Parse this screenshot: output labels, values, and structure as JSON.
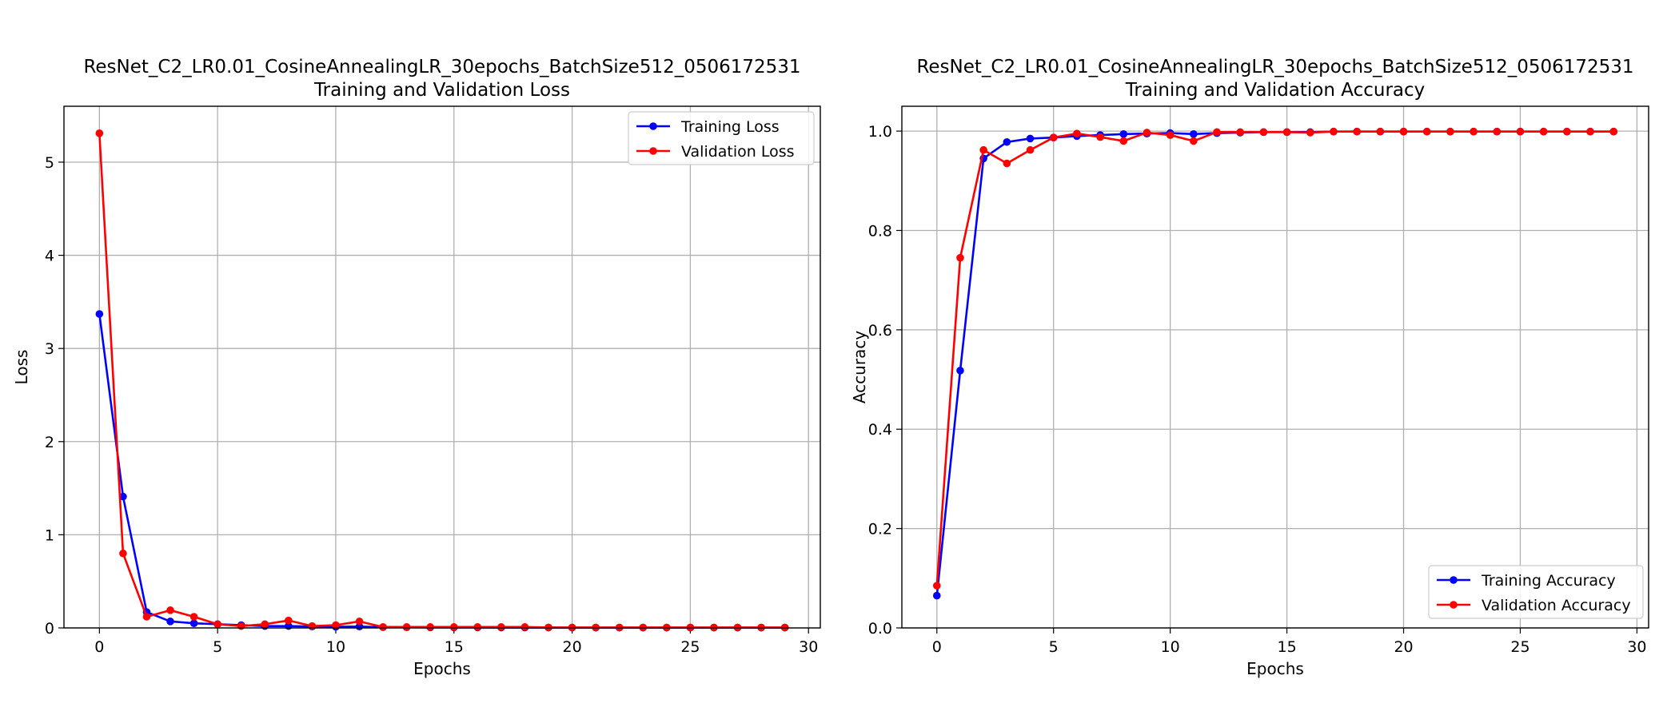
{
  "chart_data": [
    {
      "type": "line",
      "title_line1": "ResNet_C2_LR0.01_CosineAnnealingLR_30epochs_BatchSize512_0506172531",
      "title_line2": "Training and Validation Loss",
      "xlabel": "Epochs",
      "ylabel": "Loss",
      "xlim": [
        -1.5,
        30.5
      ],
      "ylim": [
        0,
        5.6
      ],
      "xticks": [
        0,
        5,
        10,
        15,
        20,
        25,
        30
      ],
      "yticks": [
        0,
        1,
        2,
        3,
        4,
        5
      ],
      "grid": true,
      "legend_position": "top-right",
      "x": [
        0,
        1,
        2,
        3,
        4,
        5,
        6,
        7,
        8,
        9,
        10,
        11,
        12,
        13,
        14,
        15,
        16,
        17,
        18,
        19,
        20,
        21,
        22,
        23,
        24,
        25,
        26,
        27,
        28,
        29
      ],
      "series": [
        {
          "name": "Training Loss",
          "color": "#0000ff",
          "values": [
            3.37,
            1.41,
            0.17,
            0.07,
            0.05,
            0.04,
            0.03,
            0.02,
            0.02,
            0.015,
            0.012,
            0.015,
            0.008,
            0.007,
            0.006,
            0.005,
            0.005,
            0.004,
            0.004,
            0.004,
            0.003,
            0.003,
            0.003,
            0.003,
            0.003,
            0.003,
            0.003,
            0.003,
            0.003,
            0.003
          ]
        },
        {
          "name": "Validation Loss",
          "color": "#ff0000",
          "values": [
            5.31,
            0.8,
            0.12,
            0.19,
            0.12,
            0.04,
            0.02,
            0.04,
            0.08,
            0.02,
            0.03,
            0.07,
            0.01,
            0.01,
            0.01,
            0.01,
            0.01,
            0.01,
            0.01,
            0.005,
            0.005,
            0.005,
            0.005,
            0.005,
            0.005,
            0.005,
            0.005,
            0.005,
            0.005,
            0.005
          ]
        }
      ]
    },
    {
      "type": "line",
      "title_line1": "ResNet_C2_LR0.01_CosineAnnealingLR_30epochs_BatchSize512_0506172531",
      "title_line2": "Training and Validation Accuracy",
      "xlabel": "Epochs",
      "ylabel": "Accuracy",
      "xlim": [
        -1.5,
        30.5
      ],
      "ylim": [
        0,
        1.05
      ],
      "xticks": [
        0,
        5,
        10,
        15,
        20,
        25,
        30
      ],
      "yticks": [
        0.0,
        0.2,
        0.4,
        0.6,
        0.8,
        1.0
      ],
      "grid": true,
      "legend_position": "bottom-right",
      "x": [
        0,
        1,
        2,
        3,
        4,
        5,
        6,
        7,
        8,
        9,
        10,
        11,
        12,
        13,
        14,
        15,
        16,
        17,
        18,
        19,
        20,
        21,
        22,
        23,
        24,
        25,
        26,
        27,
        28,
        29
      ],
      "series": [
        {
          "name": "Training Accuracy",
          "color": "#0000ff",
          "values": [
            0.065,
            0.518,
            0.945,
            0.978,
            0.985,
            0.987,
            0.99,
            0.992,
            0.994,
            0.995,
            0.996,
            0.994,
            0.996,
            0.997,
            0.998,
            0.998,
            0.998,
            0.999,
            0.999,
            0.999,
            0.999,
            0.999,
            0.999,
            0.999,
            0.999,
            0.999,
            0.999,
            0.999,
            0.999,
            0.999
          ]
        },
        {
          "name": "Validation Accuracy",
          "color": "#ff0000",
          "values": [
            0.085,
            0.745,
            0.962,
            0.935,
            0.962,
            0.987,
            0.995,
            0.988,
            0.98,
            0.997,
            0.992,
            0.98,
            0.998,
            0.998,
            0.998,
            0.998,
            0.997,
            0.999,
            0.999,
            0.999,
            0.999,
            0.999,
            0.999,
            0.999,
            0.999,
            0.999,
            0.999,
            0.999,
            0.999,
            0.999
          ]
        }
      ]
    }
  ]
}
